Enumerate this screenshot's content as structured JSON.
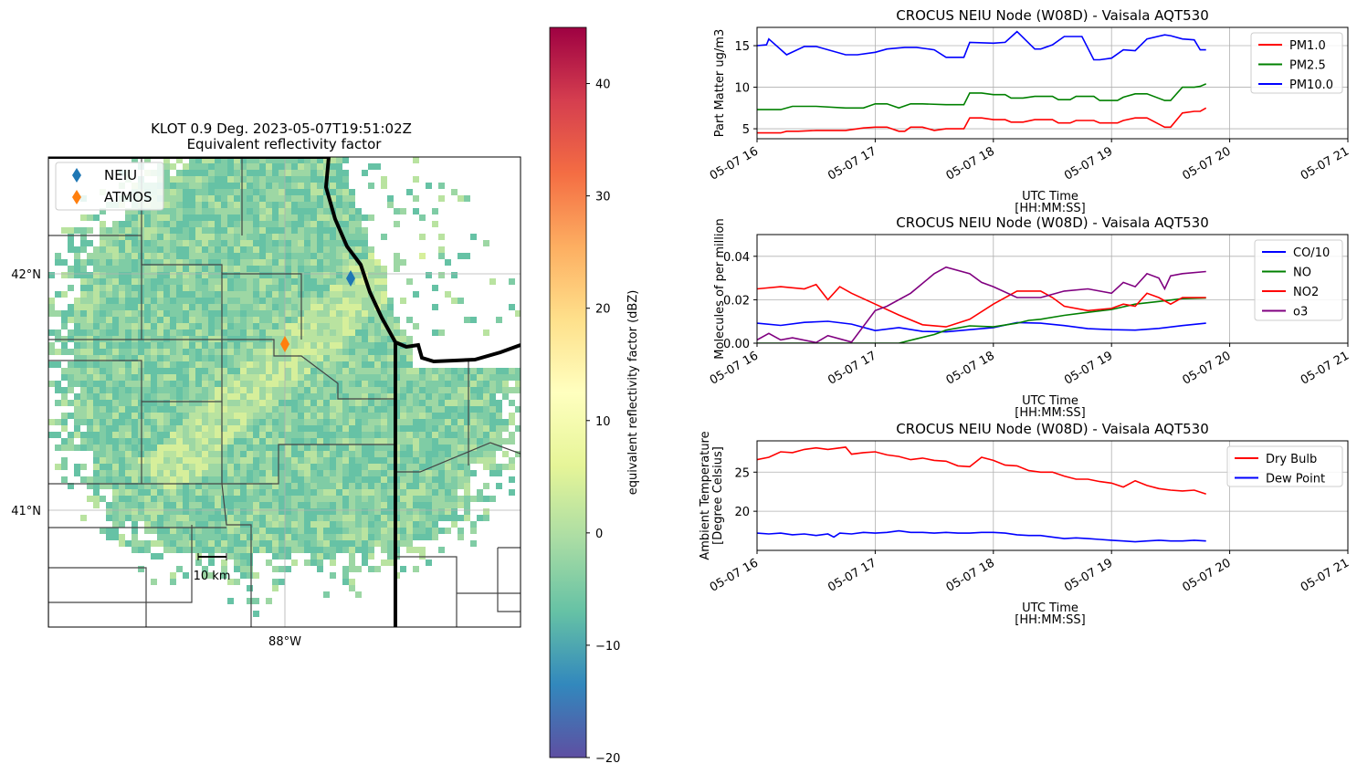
{
  "radar": {
    "title_line1": "KLOT 0.9 Deg. 2023-05-07T19:51:02Z",
    "title_line2": "Equivalent reflectivity factor",
    "lat_labels": [
      "42°N",
      "41°N"
    ],
    "lon_labels": [
      "88°W"
    ],
    "legend": [
      {
        "name": "NEIU",
        "color": "#1f77b4",
        "marker": "diamond"
      },
      {
        "name": "ATMOS",
        "color": "#ff7f0e",
        "marker": "diamond"
      }
    ],
    "scale_bar_label": "10 km",
    "colorbar": {
      "label": "equivalent reflectivity factor (dBZ)",
      "ticks": [
        -20,
        -10,
        0,
        10,
        20,
        30,
        40
      ],
      "tick_labels": [
        "−20",
        "−10",
        "0",
        "10",
        "20",
        "30",
        "40"
      ],
      "range": [
        -20,
        45
      ],
      "colormap": "Spectral_r",
      "stops": [
        "#5e4fa2",
        "#3288bd",
        "#66c2a5",
        "#abdda4",
        "#e6f598",
        "#ffffbf",
        "#fee08b",
        "#fdae61",
        "#f46d43",
        "#d53e4f",
        "#9e0142"
      ]
    },
    "echo_colors": [
      "#66c2a5",
      "#7fcca5",
      "#9dd7a4",
      "#b9e3a0",
      "#d6ef9b"
    ]
  },
  "chart_data": [
    {
      "type": "line",
      "title": "CROCUS NEIU Node (W08D) - Vaisala AQT530",
      "xlabel": "UTC Time\n[HH:MM:SS]",
      "xlabel_lines": [
        "UTC Time",
        "[HH:MM:SS]"
      ],
      "ylabel": "Part Matter ug/m3",
      "ylabel_lines": [
        "Part Matter ug/m3"
      ],
      "xlim": [
        "2023-05-07 16:00",
        "2023-05-07 21:00"
      ],
      "x_ticks": [
        "05-07 16",
        "05-07 17",
        "05-07 18",
        "05-07 19",
        "05-07 20",
        "05-07 21"
      ],
      "ylim": [
        3.8,
        17.2
      ],
      "y_ticks": [
        5,
        10,
        15
      ],
      "grid": true,
      "legend_position": "upper right",
      "series": [
        {
          "name": "PM1.0",
          "color": "#ff0000",
          "x_hours": [
            16.0,
            16.2,
            16.25,
            16.35,
            16.5,
            16.75,
            16.9,
            17.0,
            17.1,
            17.2,
            17.25,
            17.3,
            17.4,
            17.5,
            17.6,
            17.75,
            17.8,
            17.9,
            18.0,
            18.1,
            18.15,
            18.25,
            18.35,
            18.5,
            18.55,
            18.65,
            18.7,
            18.85,
            18.9,
            19.05,
            19.1,
            19.2,
            19.3,
            19.45,
            19.5,
            19.6,
            19.7,
            19.75,
            19.8
          ],
          "values": [
            4.5,
            4.5,
            4.7,
            4.7,
            4.8,
            4.8,
            5.1,
            5.2,
            5.2,
            4.7,
            4.7,
            5.2,
            5.2,
            4.8,
            5.0,
            5.0,
            6.3,
            6.3,
            6.1,
            6.1,
            5.8,
            5.8,
            6.1,
            6.1,
            5.7,
            5.7,
            6.0,
            6.0,
            5.7,
            5.7,
            6.0,
            6.3,
            6.3,
            5.2,
            5.2,
            6.9,
            7.1,
            7.1,
            7.5
          ]
        },
        {
          "name": "PM2.5",
          "color": "#008000",
          "x_hours": [
            16.0,
            16.2,
            16.3,
            16.5,
            16.75,
            16.9,
            17.0,
            17.1,
            17.2,
            17.3,
            17.4,
            17.6,
            17.75,
            17.8,
            17.9,
            18.0,
            18.1,
            18.15,
            18.25,
            18.35,
            18.5,
            18.55,
            18.65,
            18.7,
            18.85,
            18.9,
            19.05,
            19.1,
            19.2,
            19.3,
            19.45,
            19.5,
            19.6,
            19.7,
            19.75,
            19.8
          ],
          "values": [
            7.3,
            7.3,
            7.7,
            7.7,
            7.5,
            7.5,
            8.0,
            8.0,
            7.5,
            8.0,
            8.0,
            7.9,
            7.9,
            9.3,
            9.3,
            9.1,
            9.1,
            8.7,
            8.7,
            8.9,
            8.9,
            8.5,
            8.5,
            8.9,
            8.9,
            8.4,
            8.4,
            8.8,
            9.2,
            9.2,
            8.4,
            8.4,
            10.0,
            10.0,
            10.1,
            10.4
          ]
        },
        {
          "name": "PM10.0",
          "color": "#0000ff",
          "x_hours": [
            16.0,
            16.08,
            16.1,
            16.25,
            16.4,
            16.5,
            16.75,
            16.85,
            17.0,
            17.1,
            17.25,
            17.35,
            17.5,
            17.6,
            17.75,
            17.8,
            18.0,
            18.1,
            18.2,
            18.35,
            18.4,
            18.5,
            18.6,
            18.75,
            18.85,
            18.9,
            19.0,
            19.1,
            19.2,
            19.3,
            19.45,
            19.5,
            19.6,
            19.7,
            19.75,
            19.8
          ],
          "values": [
            15.0,
            15.1,
            15.8,
            13.9,
            14.9,
            14.9,
            13.9,
            13.9,
            14.2,
            14.6,
            14.8,
            14.8,
            14.5,
            13.6,
            13.6,
            15.4,
            15.3,
            15.4,
            16.7,
            14.6,
            14.6,
            15.1,
            16.1,
            16.1,
            13.3,
            13.3,
            13.5,
            14.5,
            14.4,
            15.8,
            16.3,
            16.2,
            15.8,
            15.7,
            14.5,
            14.5
          ]
        }
      ]
    },
    {
      "type": "line",
      "title": "CROCUS NEIU Node (W08D) - Vaisala AQT530",
      "xlabel": "UTC Time\n[HH:MM:SS]",
      "xlabel_lines": [
        "UTC Time",
        "[HH:MM:SS]"
      ],
      "ylabel": "Molecules of per million",
      "ylabel_lines": [
        "Molecules of per million"
      ],
      "xlim": [
        "2023-05-07 16:00",
        "2023-05-07 21:00"
      ],
      "x_ticks": [
        "05-07 16",
        "05-07 17",
        "05-07 18",
        "05-07 19",
        "05-07 20",
        "05-07 21"
      ],
      "ylim": [
        0.0,
        0.05
      ],
      "y_ticks": [
        0.0,
        0.02,
        0.04
      ],
      "y_tick_labels": [
        "0.00",
        "0.02",
        "0.04"
      ],
      "grid": true,
      "legend_position": "upper right",
      "series": [
        {
          "name": "CO/10",
          "color": "#0000ff",
          "x_hours": [
            16.0,
            16.2,
            16.4,
            16.6,
            16.8,
            17.0,
            17.2,
            17.4,
            17.6,
            17.8,
            18.0,
            18.2,
            18.4,
            18.6,
            18.8,
            19.0,
            19.2,
            19.4,
            19.6,
            19.8
          ],
          "values": [
            0.0092,
            0.0082,
            0.0096,
            0.0101,
            0.0088,
            0.0058,
            0.0072,
            0.0054,
            0.0052,
            0.0062,
            0.0072,
            0.0095,
            0.0092,
            0.0081,
            0.0067,
            0.0062,
            0.006,
            0.0068,
            0.0081,
            0.0092
          ]
        },
        {
          "name": "NO",
          "color": "#008000",
          "x_hours": [
            16.0,
            16.3,
            16.6,
            16.8,
            17.0,
            17.2,
            17.35,
            17.5,
            17.6,
            17.8,
            18.0,
            18.2,
            18.3,
            18.4,
            18.6,
            18.8,
            19.0,
            19.2,
            19.4,
            19.6,
            19.8
          ],
          "values": [
            0.0,
            0.0,
            0.0,
            0.0,
            0.0,
            0.0,
            0.002,
            0.004,
            0.006,
            0.008,
            0.0075,
            0.0092,
            0.0105,
            0.011,
            0.0128,
            0.0142,
            0.0155,
            0.018,
            0.0192,
            0.0205,
            0.0208
          ]
        },
        {
          "name": "NO2",
          "color": "#ff0000",
          "x_hours": [
            16.0,
            16.2,
            16.4,
            16.5,
            16.6,
            16.7,
            16.8,
            17.0,
            17.2,
            17.4,
            17.6,
            17.8,
            18.0,
            18.2,
            18.4,
            18.5,
            18.6,
            18.8,
            19.0,
            19.1,
            19.2,
            19.3,
            19.4,
            19.5,
            19.6,
            19.8
          ],
          "values": [
            0.025,
            0.026,
            0.025,
            0.027,
            0.02,
            0.026,
            0.023,
            0.018,
            0.013,
            0.0085,
            0.0075,
            0.011,
            0.018,
            0.024,
            0.024,
            0.021,
            0.017,
            0.015,
            0.016,
            0.018,
            0.017,
            0.023,
            0.021,
            0.018,
            0.021,
            0.021
          ]
        },
        {
          "name": "o3",
          "color": "#800080",
          "x_hours": [
            16.0,
            16.1,
            16.2,
            16.3,
            16.5,
            16.6,
            16.8,
            17.0,
            17.1,
            17.3,
            17.5,
            17.6,
            17.8,
            17.9,
            18.0,
            18.2,
            18.4,
            18.6,
            18.8,
            19.0,
            19.1,
            19.2,
            19.3,
            19.4,
            19.45,
            19.5,
            19.6,
            19.8
          ],
          "values": [
            0.0015,
            0.0045,
            0.0015,
            0.0025,
            0.0003,
            0.0035,
            0.0005,
            0.015,
            0.017,
            0.023,
            0.032,
            0.035,
            0.032,
            0.028,
            0.026,
            0.021,
            0.021,
            0.024,
            0.025,
            0.023,
            0.028,
            0.026,
            0.032,
            0.03,
            0.025,
            0.031,
            0.032,
            0.033
          ]
        }
      ]
    },
    {
      "type": "line",
      "title": "CROCUS NEIU Node (W08D) - Vaisala AQT530",
      "xlabel": "UTC Time\n[HH:MM:SS]",
      "xlabel_lines": [
        "UTC Time",
        "[HH:MM:SS]"
      ],
      "ylabel": "Ambient Temperature\n[Degree Celsius]",
      "ylabel_lines": [
        "Ambient Temperature",
        "[Degree Celsius]"
      ],
      "xlim": [
        "2023-05-07 16:00",
        "2023-05-07 21:00"
      ],
      "x_ticks": [
        "05-07 16",
        "05-07 17",
        "05-07 18",
        "05-07 19",
        "05-07 20",
        "05-07 21"
      ],
      "ylim": [
        15.0,
        29.0
      ],
      "y_ticks": [
        20,
        25
      ],
      "grid": true,
      "legend_position": "upper right",
      "series": [
        {
          "name": "Dry Bulb",
          "color": "#ff0000",
          "x_hours": [
            16.0,
            16.1,
            16.2,
            16.3,
            16.4,
            16.5,
            16.6,
            16.75,
            16.8,
            16.9,
            17.0,
            17.1,
            17.2,
            17.3,
            17.4,
            17.5,
            17.6,
            17.7,
            17.8,
            17.9,
            18.0,
            18.1,
            18.2,
            18.3,
            18.4,
            18.5,
            18.6,
            18.7,
            18.8,
            18.9,
            19.0,
            19.1,
            19.2,
            19.3,
            19.4,
            19.5,
            19.6,
            19.7,
            19.8
          ],
          "values": [
            26.6,
            26.9,
            27.6,
            27.5,
            27.9,
            28.1,
            27.9,
            28.2,
            27.3,
            27.5,
            27.6,
            27.2,
            27.0,
            26.6,
            26.8,
            26.5,
            26.4,
            25.8,
            25.7,
            26.9,
            26.5,
            25.9,
            25.8,
            25.2,
            25.0,
            25.0,
            24.5,
            24.1,
            24.1,
            23.8,
            23.6,
            23.1,
            23.9,
            23.3,
            22.9,
            22.7,
            22.6,
            22.7,
            22.2
          ]
        },
        {
          "name": "Dew Point",
          "color": "#0000ff",
          "x_hours": [
            16.0,
            16.1,
            16.2,
            16.3,
            16.4,
            16.5,
            16.6,
            16.65,
            16.7,
            16.8,
            16.9,
            17.0,
            17.1,
            17.2,
            17.3,
            17.4,
            17.5,
            17.6,
            17.7,
            17.8,
            17.9,
            18.0,
            18.1,
            18.2,
            18.3,
            18.4,
            18.5,
            18.6,
            18.7,
            18.8,
            18.9,
            19.0,
            19.1,
            19.2,
            19.3,
            19.4,
            19.5,
            19.6,
            19.7,
            19.8
          ],
          "values": [
            17.2,
            17.1,
            17.2,
            17.0,
            17.1,
            16.9,
            17.1,
            16.7,
            17.2,
            17.1,
            17.3,
            17.2,
            17.3,
            17.5,
            17.3,
            17.3,
            17.2,
            17.3,
            17.2,
            17.2,
            17.3,
            17.3,
            17.2,
            17.0,
            16.9,
            16.9,
            16.7,
            16.5,
            16.6,
            16.5,
            16.4,
            16.3,
            16.2,
            16.1,
            16.2,
            16.3,
            16.2,
            16.2,
            16.3,
            16.2
          ]
        }
      ]
    }
  ]
}
